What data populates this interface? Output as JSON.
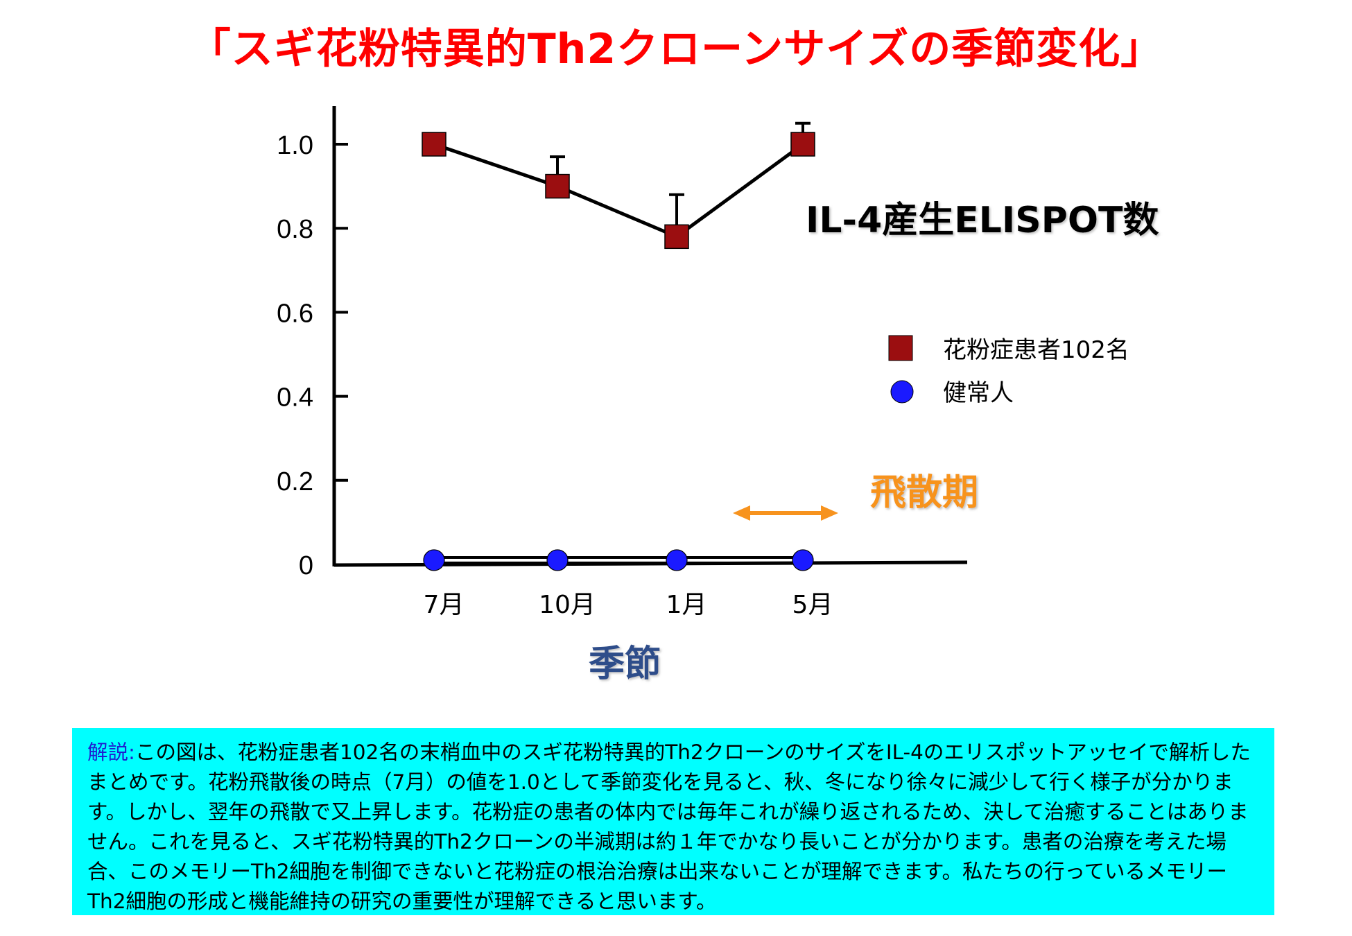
{
  "title": "「スギ花粉特異的Th2クローンサイズの季節変化」",
  "colors": {
    "title": "#ff0000",
    "patient_series": "#9b0e10",
    "healthy_series": "#1a1aff",
    "series_line": "#000000",
    "pollen_season": "#f7931e",
    "annotation": "#000000",
    "xlabel": "#2e4d8a",
    "explain_background": "#00ffff",
    "explain_label": "#1f1fd0"
  },
  "chart_data": {
    "type": "line",
    "categories": [
      "7月",
      "10月",
      "1月",
      "5月"
    ],
    "xlabel": "季節",
    "ylabel": "",
    "ylim": [
      0,
      1.1
    ],
    "yticks": [
      0,
      0.2,
      0.4,
      0.6,
      0.8,
      1.0
    ],
    "ytick_labels": [
      "0",
      "0.2",
      "0.4",
      "0.6",
      "0.8",
      "1.0"
    ],
    "series": [
      {
        "name": "花粉症患者102名",
        "marker": "square",
        "values": [
          1.0,
          0.9,
          0.78,
          1.0
        ],
        "error_upper": [
          0,
          0.07,
          0.1,
          0.05
        ]
      },
      {
        "name": "健常人",
        "marker": "circle",
        "values": [
          0.01,
          0.01,
          0.01,
          0.01
        ]
      }
    ],
    "annotations": {
      "measure": "IL-4産生ELISPOT数",
      "pollen_season": "飛散期",
      "pollen_season_range": [
        "1月",
        "5月"
      ]
    },
    "legend_position": "right",
    "grid": false
  },
  "explanation": {
    "label": "解説:",
    "text": "この図は、花粉症患者102名の末梢血中のスギ花粉特異的Th2クローンのサイズをIL-4のエリスポットアッセイで解析したまとめです。花粉飛散後の時点（7月）の値を1.0として季節変化を見ると、秋、冬になり徐々に減少して行く様子が分かります。しかし、翌年の飛散で又上昇します。花粉症の患者の体内では毎年これが繰り返されるため、決して治癒することはありません。これを見ると、スギ花粉特異的Th2クローンの半減期は約１年でかなり長いことが分かります。患者の治療を考えた場合、このメモリーTh2細胞を制御できないと花粉症の根治治療は出来ないことが理解できます。私たちの行っているメモリーTh2細胞の形成と機能維持の研究の重要性が理解できると思います。"
  }
}
